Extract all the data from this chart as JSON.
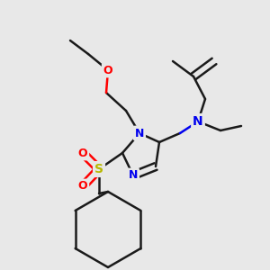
{
  "bg_color": "#e8e8e8",
  "atom_colors": {
    "N": "#0000ee",
    "O": "#ff0000",
    "S": "#b8b800",
    "C": "#1a1a1a"
  },
  "lw": 1.8,
  "dbo": 0.018,
  "figsize": [
    3.0,
    3.0
  ],
  "dpi": 100
}
